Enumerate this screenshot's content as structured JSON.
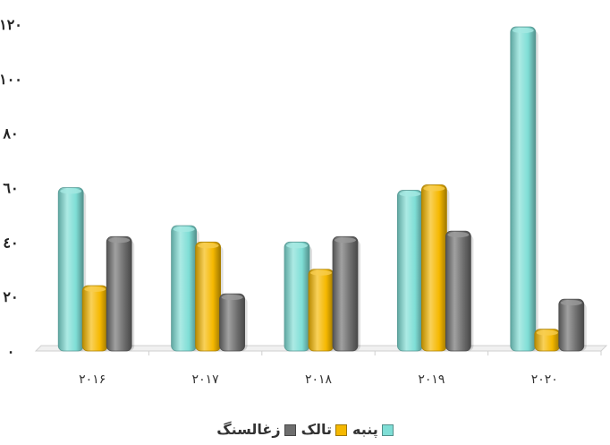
{
  "chart_data": {
    "type": "bar",
    "categories": [
      "۲۰۱۶",
      "۲۰۱۷",
      "۲۰۱۸",
      "۲۰۱۹",
      "۲۰۲۰"
    ],
    "series": [
      {
        "name": "پنبه",
        "color": "#7fded6",
        "values": [
          60,
          46,
          40,
          59,
          119
        ]
      },
      {
        "name": "تالک",
        "color": "#f5b800",
        "values": [
          24,
          40,
          30,
          61,
          8
        ]
      },
      {
        "name": "زغالسنگ",
        "color": "#6e6e6e",
        "values": [
          42,
          21,
          42,
          44,
          19
        ]
      }
    ],
    "yticks": [
      "۰",
      "۲۰",
      "٤۰",
      "٦۰",
      "۸۰",
      "۱۰۰",
      "۱۲۰"
    ],
    "ylim": [
      0,
      120
    ],
    "grid": false,
    "legend_position": "bottom",
    "title": "",
    "xlabel": "",
    "ylabel": ""
  }
}
